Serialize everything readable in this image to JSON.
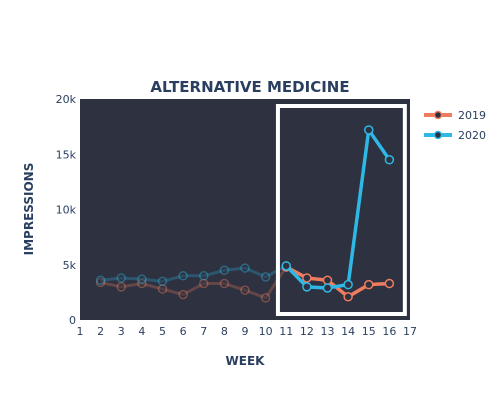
{
  "chart_data": {
    "type": "line",
    "title": "ALTERNATIVE MEDICINE",
    "xlabel": "WEEK",
    "ylabel": "IMPRESSIONS",
    "x_ticks": [
      "1",
      "2",
      "3",
      "4",
      "5",
      "6",
      "7",
      "8",
      "9",
      "10",
      "11",
      "12",
      "13",
      "14",
      "15",
      "16",
      "17"
    ],
    "y_ticks": [
      "0",
      "5k",
      "10k",
      "15k",
      "20k"
    ],
    "xlim": [
      1,
      17
    ],
    "ylim": [
      0,
      20000
    ],
    "highlight_range": [
      11,
      16
    ],
    "series": [
      {
        "name": "2019",
        "color": "#f07c5f",
        "x": [
          2,
          3,
          4,
          5,
          6,
          7,
          8,
          9,
          10,
          11,
          12,
          13,
          14,
          15,
          16
        ],
        "values": [
          3400,
          3000,
          3300,
          2800,
          2300,
          3300,
          3300,
          2700,
          2000,
          4800,
          3800,
          3600,
          2100,
          3200,
          3300
        ]
      },
      {
        "name": "2020",
        "color": "#2eb8e6",
        "x": [
          2,
          3,
          4,
          5,
          6,
          7,
          8,
          9,
          10,
          11,
          12,
          13,
          14,
          15,
          16
        ],
        "values": [
          3600,
          3800,
          3700,
          3500,
          4000,
          4000,
          4500,
          4700,
          3900,
          4900,
          3000,
          2900,
          3200,
          17200,
          14500
        ]
      }
    ],
    "grid": false,
    "legend_position": "top-right",
    "background": "#2d3140"
  }
}
